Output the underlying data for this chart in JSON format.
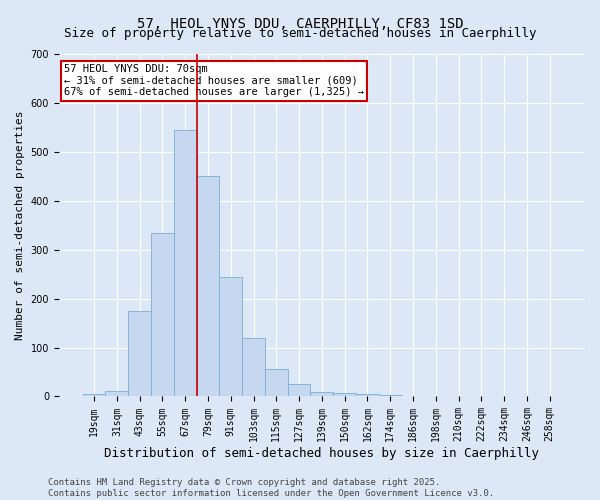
{
  "title": "57, HEOL YNYS DDU, CAERPHILLY, CF83 1SD",
  "subtitle": "Size of property relative to semi-detached houses in Caerphilly",
  "xlabel": "Distribution of semi-detached houses by size in Caerphilly",
  "ylabel": "Number of semi-detached properties",
  "bin_labels": [
    "19sqm",
    "31sqm",
    "43sqm",
    "55sqm",
    "67sqm",
    "79sqm",
    "91sqm",
    "103sqm",
    "115sqm",
    "127sqm",
    "139sqm",
    "150sqm",
    "162sqm",
    "174sqm",
    "186sqm",
    "198sqm",
    "210sqm",
    "222sqm",
    "234sqm",
    "246sqm",
    "258sqm"
  ],
  "bar_heights": [
    5,
    12,
    175,
    335,
    545,
    450,
    245,
    120,
    57,
    25,
    10,
    8,
    5,
    3,
    1,
    0,
    0,
    0,
    0,
    0,
    0
  ],
  "bar_color": "#c5d8f0",
  "bar_edge_color": "#7aadd4",
  "vline_color": "#cc0000",
  "annotation_text": "57 HEOL YNYS DDU: 70sqm\n← 31% of semi-detached houses are smaller (609)\n67% of semi-detached houses are larger (1,325) →",
  "annotation_box_color": "white",
  "annotation_box_edge": "#cc0000",
  "ylim": [
    0,
    700
  ],
  "yticks": [
    0,
    100,
    200,
    300,
    400,
    500,
    600,
    700
  ],
  "footer_text": "Contains HM Land Registry data © Crown copyright and database right 2025.\nContains public sector information licensed under the Open Government Licence v3.0.",
  "background_color": "#dce8f5",
  "plot_bg_color": "#dce8f5",
  "title_fontsize": 10,
  "subtitle_fontsize": 9,
  "xlabel_fontsize": 9,
  "ylabel_fontsize": 8,
  "tick_fontsize": 7,
  "annot_fontsize": 7.5,
  "footer_fontsize": 6.5
}
